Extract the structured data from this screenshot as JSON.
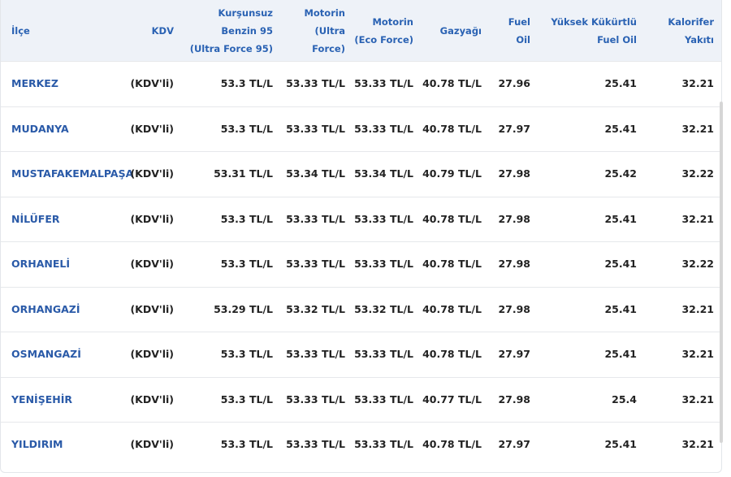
{
  "table": {
    "headers": [
      [
        "İlçe"
      ],
      [
        "KDV"
      ],
      [
        "Kurşunsuz",
        "Benzin 95",
        "(Ultra Force 95)"
      ],
      [
        "Motorin",
        "(Ultra",
        "Force)"
      ],
      [
        "Motorin",
        "(Eco Force)"
      ],
      [
        "Gazyağı"
      ],
      [
        "Fuel",
        "Oil"
      ],
      [
        "Yüksek Kükürtlü",
        "Fuel Oil"
      ],
      [
        "Kalorifer",
        "Yakıtı"
      ]
    ],
    "rows": [
      [
        "MERKEZ",
        "(KDV'li)",
        "53.3 TL/L",
        "53.33 TL/L",
        "53.33 TL/L",
        "40.78 TL/L",
        27.96,
        25.41,
        32.21
      ],
      [
        "MUDANYA",
        "(KDV'li)",
        "53.3 TL/L",
        "53.33 TL/L",
        "53.33 TL/L",
        "40.78 TL/L",
        27.97,
        25.41,
        32.21
      ],
      [
        "MUSTAFAKEMALPAŞA",
        "(KDV'li)",
        "53.31 TL/L",
        "53.34 TL/L",
        "53.34 TL/L",
        "40.79 TL/L",
        27.98,
        25.42,
        32.22
      ],
      [
        "NİLÜFER",
        "(KDV'li)",
        "53.3 TL/L",
        "53.33 TL/L",
        "53.33 TL/L",
        "40.78 TL/L",
        27.98,
        25.41,
        32.21
      ],
      [
        "ORHANELİ",
        "(KDV'li)",
        "53.3 TL/L",
        "53.33 TL/L",
        "53.33 TL/L",
        "40.78 TL/L",
        27.98,
        25.41,
        32.22
      ],
      [
        "ORHANGAZİ",
        "(KDV'li)",
        "53.29 TL/L",
        "53.32 TL/L",
        "53.32 TL/L",
        "40.78 TL/L",
        27.98,
        25.41,
        32.21
      ],
      [
        "OSMANGAZİ",
        "(KDV'li)",
        "53.3 TL/L",
        "53.33 TL/L",
        "53.33 TL/L",
        "40.78 TL/L",
        27.97,
        25.41,
        32.21
      ],
      [
        "YENİŞEHİR",
        "(KDV'li)",
        "53.3 TL/L",
        "53.33 TL/L",
        "53.33 TL/L",
        "40.77 TL/L",
        27.98,
        25.4,
        32.21
      ],
      [
        "YILDIRIM",
        "(KDV'li)",
        "53.3 TL/L",
        "53.33 TL/L",
        "53.33 TL/L",
        "40.78 TL/L",
        27.97,
        25.41,
        32.21
      ]
    ]
  }
}
